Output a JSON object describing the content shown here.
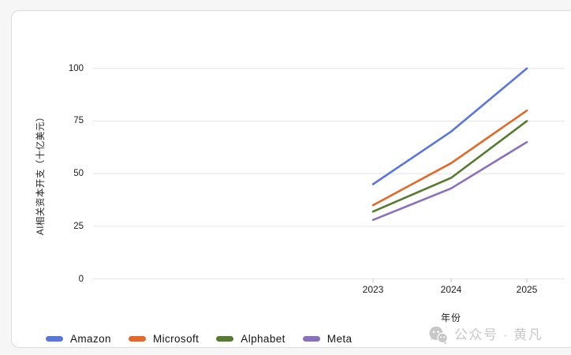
{
  "watermark": {
    "icon": "wechat-icon",
    "text": "公众号 · 黄凡",
    "color": "#c7c7c7"
  },
  "chart_data": {
    "type": "line",
    "title": "",
    "xlabel": "年份",
    "ylabel": "AI相关资本开支（十亿美元）",
    "categories": [
      "2023",
      "2024",
      "2025"
    ],
    "yticks": [
      0,
      25,
      50,
      75,
      100
    ],
    "ylim": [
      0,
      105
    ],
    "grid": true,
    "grid_color": "#e4e4e4",
    "axis_tick_color": "#c9c9c9",
    "legend_position": "bottom-left",
    "series": [
      {
        "name": "Amazon",
        "color": "#5b76d9",
        "values": [
          45,
          70,
          100
        ]
      },
      {
        "name": "Microsoft",
        "color": "#e2692a",
        "values": [
          35,
          55,
          80
        ]
      },
      {
        "name": "Alphabet",
        "color": "#567b2e",
        "values": [
          32,
          48,
          75
        ]
      },
      {
        "name": "Meta",
        "color": "#8b70be",
        "values": [
          28,
          43,
          65
        ]
      }
    ]
  }
}
